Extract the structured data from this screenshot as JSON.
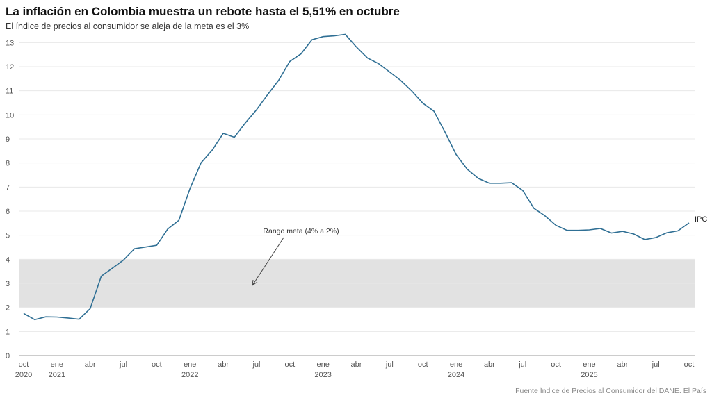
{
  "chart_data": {
    "type": "line",
    "title": "La inflación en Colombia muestra un rebote hasta el 5,51% en octubre",
    "subtitle": "El índice de precios al consumidor se aleja de la meta es el 3%",
    "source": "Fuente Índice de Precios al Consumidor del DANE. El País",
    "categories": [
      "oct 2020",
      null,
      null,
      "ene 2021",
      null,
      null,
      "abr",
      null,
      null,
      "jul",
      null,
      null,
      "oct",
      null,
      null,
      "ene 2022",
      null,
      null,
      "abr",
      null,
      null,
      "jul",
      null,
      null,
      "oct",
      null,
      null,
      "ene 2023",
      null,
      null,
      "abr",
      null,
      null,
      "jul",
      null,
      null,
      "oct",
      null,
      null,
      "ene 2024",
      null,
      null,
      "abr",
      null,
      null,
      "jul",
      null,
      null,
      "oct",
      null,
      null,
      "ene 2025",
      null,
      null,
      "abr",
      null,
      null,
      "jul",
      null,
      null,
      "oct"
    ],
    "series": [
      {
        "name": "IPC",
        "color": "#2f6f94",
        "values": [
          1.75,
          1.49,
          1.61,
          1.6,
          1.56,
          1.51,
          1.95,
          3.3,
          3.63,
          3.97,
          4.44,
          4.51,
          4.58,
          5.26,
          5.62,
          6.94,
          8.01,
          8.53,
          9.23,
          9.07,
          9.67,
          10.21,
          10.84,
          11.44,
          12.22,
          12.53,
          13.12,
          13.25,
          13.28,
          13.34,
          12.82,
          12.36,
          12.13,
          11.78,
          11.43,
          10.99,
          10.48,
          10.15,
          9.28,
          8.35,
          7.74,
          7.36,
          7.16,
          7.16,
          7.18,
          6.86,
          6.12,
          5.81,
          5.41,
          5.2,
          5.2,
          5.22,
          5.28,
          5.09,
          5.16,
          5.05,
          4.82,
          4.9,
          5.1,
          5.18,
          5.51
        ]
      }
    ],
    "band": {
      "from": 2,
      "to": 4,
      "color": "#e2e2e2",
      "label": "Rango meta (4% a 2%)"
    },
    "ylim": [
      0,
      13.5
    ],
    "yticks": [
      0,
      1,
      2,
      3,
      4,
      5,
      6,
      7,
      8,
      9,
      10,
      11,
      12,
      13
    ],
    "grid": true
  }
}
